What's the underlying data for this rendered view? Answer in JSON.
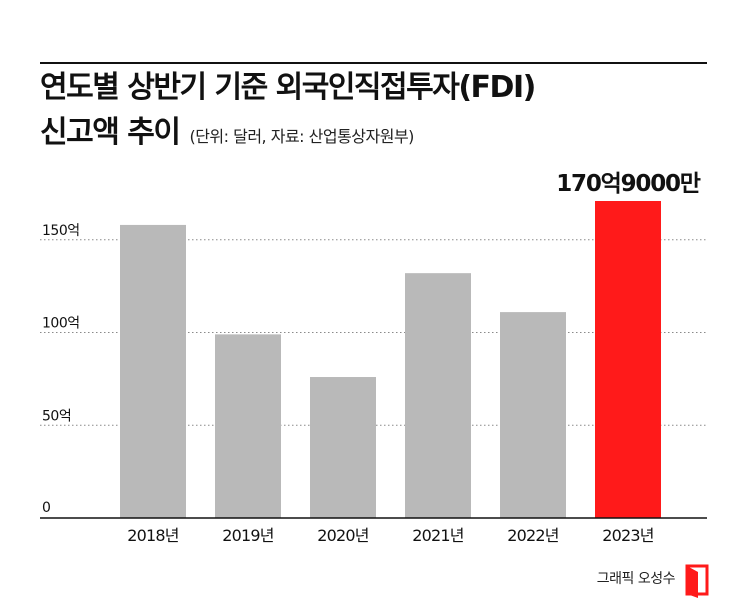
{
  "title_line1": "연도별 상반기 기준 외국인직접투자(FDI)",
  "title_line2": "신고액 추이",
  "subtitle": "(단위: 달러, 자료: 산업통상자원부)",
  "credit": "그래픽 오성수",
  "colors": {
    "bar": "#b9b9b9",
    "highlight": "#ff1a1a",
    "grid": "#8a8a8a",
    "axis": "#111111"
  },
  "chart_data": {
    "type": "bar",
    "categories": [
      "2018년",
      "2019년",
      "2020년",
      "2021년",
      "2022년",
      "2023년"
    ],
    "values": [
      158,
      99,
      76,
      132,
      111,
      170.9
    ],
    "highlight_index": 5,
    "highlight_label": "170억9000만",
    "ylim": [
      0,
      170.9
    ],
    "yticks": [
      0,
      50,
      100,
      150
    ],
    "ytick_labels": [
      "0",
      "50억",
      "100억",
      "150억"
    ],
    "grid": true,
    "title": "연도별 상반기 기준 외국인직접투자(FDI) 신고액 추이",
    "xlabel": "",
    "ylabel": ""
  }
}
